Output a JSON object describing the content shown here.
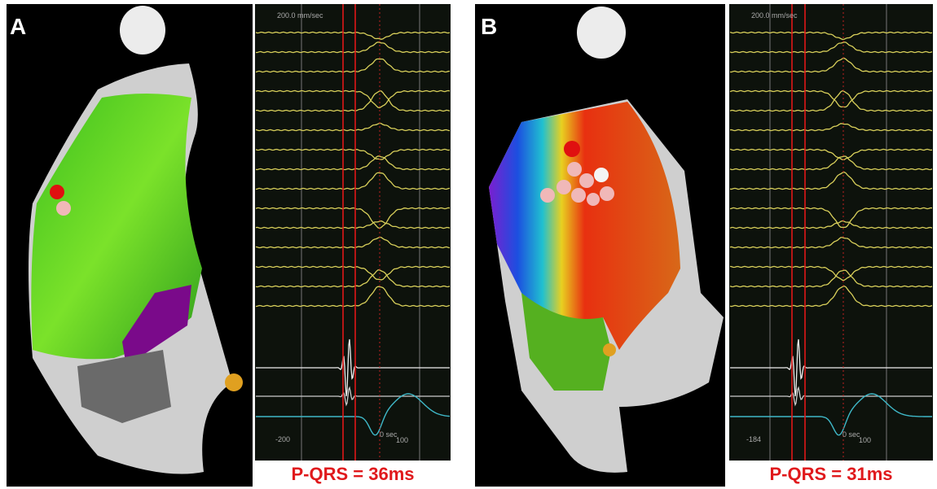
{
  "panels": [
    {
      "label": "A",
      "sweep_speed": "200.0 mm/sec",
      "time_labels": [
        "-200",
        "0 sec",
        "100"
      ],
      "caption": "P-QRS = 36ms"
    },
    {
      "label": "B",
      "sweep_speed": "200.0 mm/sec",
      "time_labels": [
        "-184",
        "0 sec",
        "100"
      ],
      "caption": "P-QRS = 31ms"
    }
  ]
}
